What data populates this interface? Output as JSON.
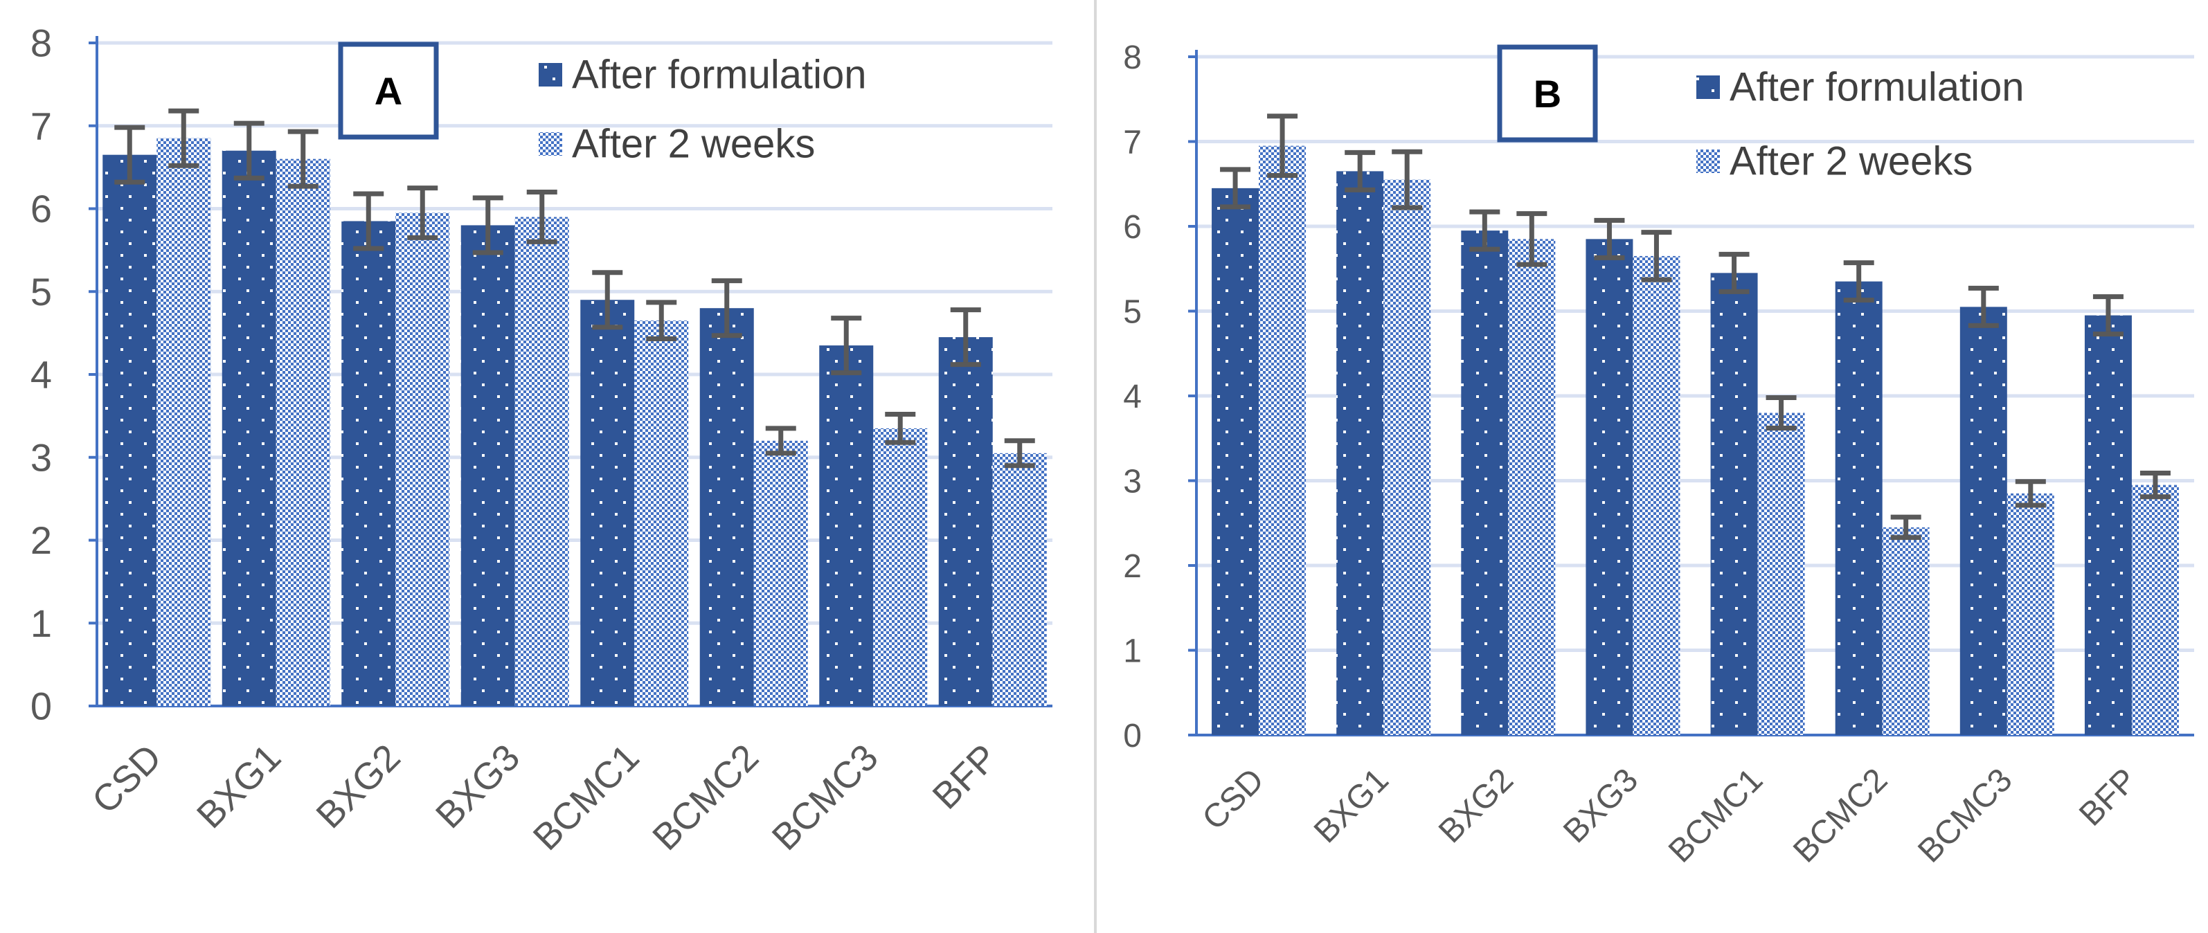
{
  "chart_data": [
    {
      "type": "bar",
      "panel_label": "A",
      "categories": [
        "CSD",
        "BXG1",
        "BXG2",
        "BXG3",
        "BCMC1",
        "BCMC2",
        "BCMC3",
        "BFP"
      ],
      "series": [
        {
          "name": "After formulation",
          "values": [
            6.65,
            6.7,
            5.85,
            5.8,
            4.9,
            4.8,
            4.35,
            4.45
          ],
          "error": [
            0.33,
            0.33,
            0.33,
            0.33,
            0.33,
            0.33,
            0.33,
            0.33
          ],
          "color": "#2f5597",
          "pattern": "dots"
        },
        {
          "name": "After 2 weeks",
          "values": [
            6.85,
            6.6,
            5.95,
            5.9,
            4.65,
            3.2,
            3.35,
            3.05
          ],
          "error": [
            0.33,
            0.33,
            0.3,
            0.3,
            0.22,
            0.15,
            0.17,
            0.15
          ],
          "color": "#4472c4",
          "pattern": "checker"
        }
      ],
      "yticks": [
        "0",
        "1",
        "2",
        "3",
        "4",
        "5",
        "6",
        "7",
        "8"
      ],
      "ylim": [
        0,
        8
      ],
      "grid": true,
      "legend": "top-right"
    },
    {
      "type": "bar",
      "panel_label": "B",
      "categories": [
        "CSD",
        "BXG1",
        "BXG2",
        "BXG3",
        "BCMC1",
        "BCMC2",
        "BCMC3",
        "BFP"
      ],
      "series": [
        {
          "name": "After formulation",
          "values": [
            6.45,
            6.65,
            5.95,
            5.85,
            5.45,
            5.35,
            5.05,
            4.95
          ],
          "error": [
            0.22,
            0.22,
            0.22,
            0.22,
            0.22,
            0.22,
            0.22,
            0.22
          ],
          "color": "#2f5597",
          "pattern": "dots"
        },
        {
          "name": "After 2 weeks",
          "values": [
            6.95,
            6.55,
            5.85,
            5.65,
            3.8,
            2.45,
            2.85,
            2.95
          ],
          "error": [
            0.35,
            0.33,
            0.3,
            0.28,
            0.18,
            0.12,
            0.14,
            0.14
          ],
          "color": "#4472c4",
          "pattern": "checker"
        }
      ],
      "yticks": [
        "0",
        "1",
        "2",
        "3",
        "4",
        "5",
        "6",
        "7",
        "8"
      ],
      "ylim": [
        0,
        8
      ],
      "grid": true,
      "legend": "top-right"
    }
  ],
  "colors": {
    "dark_bar": "#2f5597",
    "light_bar": "#4472c4",
    "axis": "#4472c4",
    "grid": "#d9e1f2",
    "error_bar": "#595959",
    "label_box": "#2f5597"
  }
}
